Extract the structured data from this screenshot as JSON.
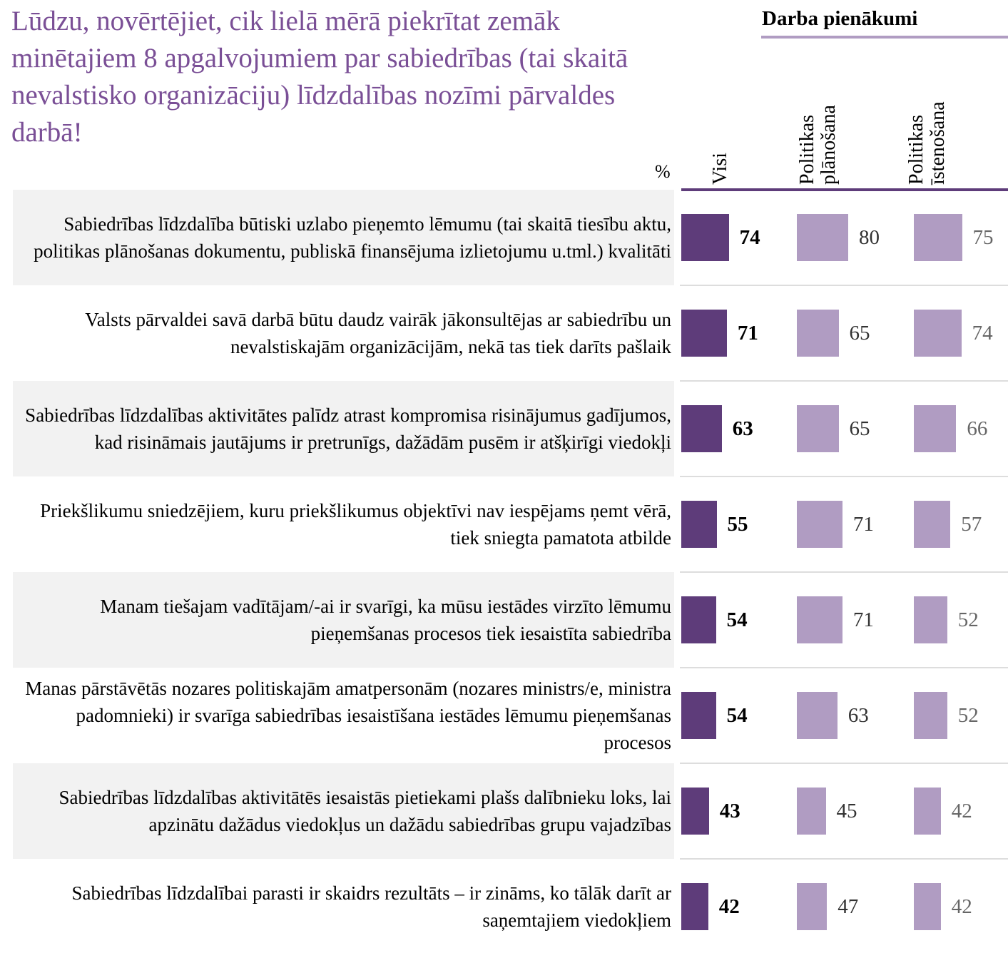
{
  "chart_data": {
    "type": "bar",
    "title": "Lūdzu, novērtējiet, cik lielā mērā piekrītat zemāk minētajiem 8 apgalvojumiem par sabiedrības (tai skaitā nevalstisko organizāciju) līdzdalības nozīmi pārvaldes darbā!",
    "group_title": "Darba pienākumi",
    "unit": "%",
    "categories": [
      "Sabiedrības līdzdalība būtiski uzlabo pieņemto lēmumu (tai skaitā tiesību aktu, politikas plānošanas dokumentu, publiskā finansējuma izlietojumu u.tml.) kvalitāti",
      "Valsts pārvaldei savā darbā būtu daudz vairāk jākonsultējas ar sabiedrību un nevalstiskajām organizācijām, nekā tas tiek darīts pašlaik",
      "Sabiedrības līdzdalības aktivitātes palīdz atrast kompromisa risinājumus gadījumos, kad risināmais jautājums ir pretrunīgs, dažādām pusēm ir atšķirīgi viedokļi",
      "Priekšlikumu sniedzējiem, kuru priekšlikumus objektīvi nav iespējams ņemt vērā, tiek sniegta pamatota atbilde",
      "Manam tiešajam vadītājam/-ai ir svarīgi, ka mūsu iestādes virzīto lēmumu pieņemšanas procesos tiek iesaistīta sabiedrība",
      "Manas pārstāvētās nozares politiskajām amatpersonām (nozares ministrs/e, ministra padomnieki) ir svarīga sabiedrības iesaistīšana iestādes lēmumu pieņemšanas procesos",
      "Sabiedrības līdzdalības aktivitātēs iesaistās pietiekami plašs dalībnieku loks, lai apzinātu dažādus viedokļus un dažādu sabiedrības grupu vajadzības",
      "Sabiedrības līdzdalībai parasti ir skaidrs rezultāts – ir zināms, ko tālāk darīt ar saņemtajiem viedokļiem"
    ],
    "series": [
      {
        "name": "Visi",
        "color": "#5e3c7a",
        "values": [
          74,
          71,
          63,
          55,
          54,
          54,
          43,
          42
        ]
      },
      {
        "name": "Politikas plānošana",
        "color": "#b09cc2",
        "values": [
          80,
          65,
          65,
          71,
          71,
          63,
          45,
          47
        ]
      },
      {
        "name": "Politikas īstenošana",
        "color": "#b09cc2",
        "values": [
          75,
          74,
          66,
          57,
          52,
          52,
          42,
          42
        ]
      }
    ]
  }
}
